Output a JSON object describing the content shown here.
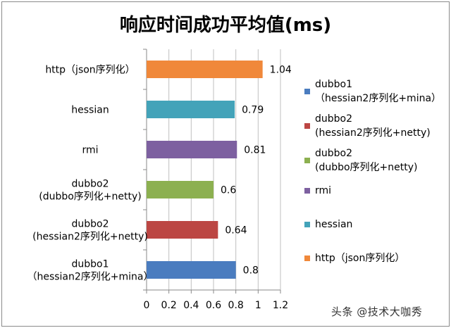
{
  "chart_data": {
    "type": "bar",
    "orientation": "horizontal",
    "title": "响应时间成功平均值(ms)",
    "categories": [
      [
        "http（json序列化）"
      ],
      [
        "hessian"
      ],
      [
        "rmi"
      ],
      [
        "dubbo2",
        "(dubbo序列化+netty)"
      ],
      [
        "dubbo2",
        "(hessian2序列化+netty)"
      ],
      [
        "dubbo1",
        "（hessian2序列化+mina）"
      ]
    ],
    "values": [
      1.04,
      0.79,
      0.81,
      0.6,
      0.64,
      0.8
    ],
    "value_labels": [
      "1.04",
      "0.79",
      "0.81",
      "0.6",
      "0.64",
      "0.8"
    ],
    "colors": [
      "#f0883a",
      "#43a3b9",
      "#7d60a0",
      "#8cb050",
      "#bc4643",
      "#4a7cbf"
    ],
    "xlim": [
      0,
      1.2
    ],
    "xticks": [
      "0",
      "0.2",
      "0.4",
      "0.6",
      "0.8",
      "1",
      "1.2"
    ],
    "legend_position": "right",
    "legend": [
      {
        "lines": [
          "dubbo1",
          "（hessian2序列化+mina）"
        ],
        "color": "#4a7cbf"
      },
      {
        "lines": [
          "dubbo2",
          "(hessian2序列化+netty)"
        ],
        "color": "#bc4643"
      },
      {
        "lines": [
          "dubbo2",
          "(dubbo序列化+netty)"
        ],
        "color": "#8cb050"
      },
      {
        "lines": [
          "rmi"
        ],
        "color": "#7d60a0"
      },
      {
        "lines": [
          "hessian"
        ],
        "color": "#43a3b9"
      },
      {
        "lines": [
          "http（json序列化）"
        ],
        "color": "#f0883a"
      }
    ]
  },
  "watermark": "头条 @技术大咖秀"
}
